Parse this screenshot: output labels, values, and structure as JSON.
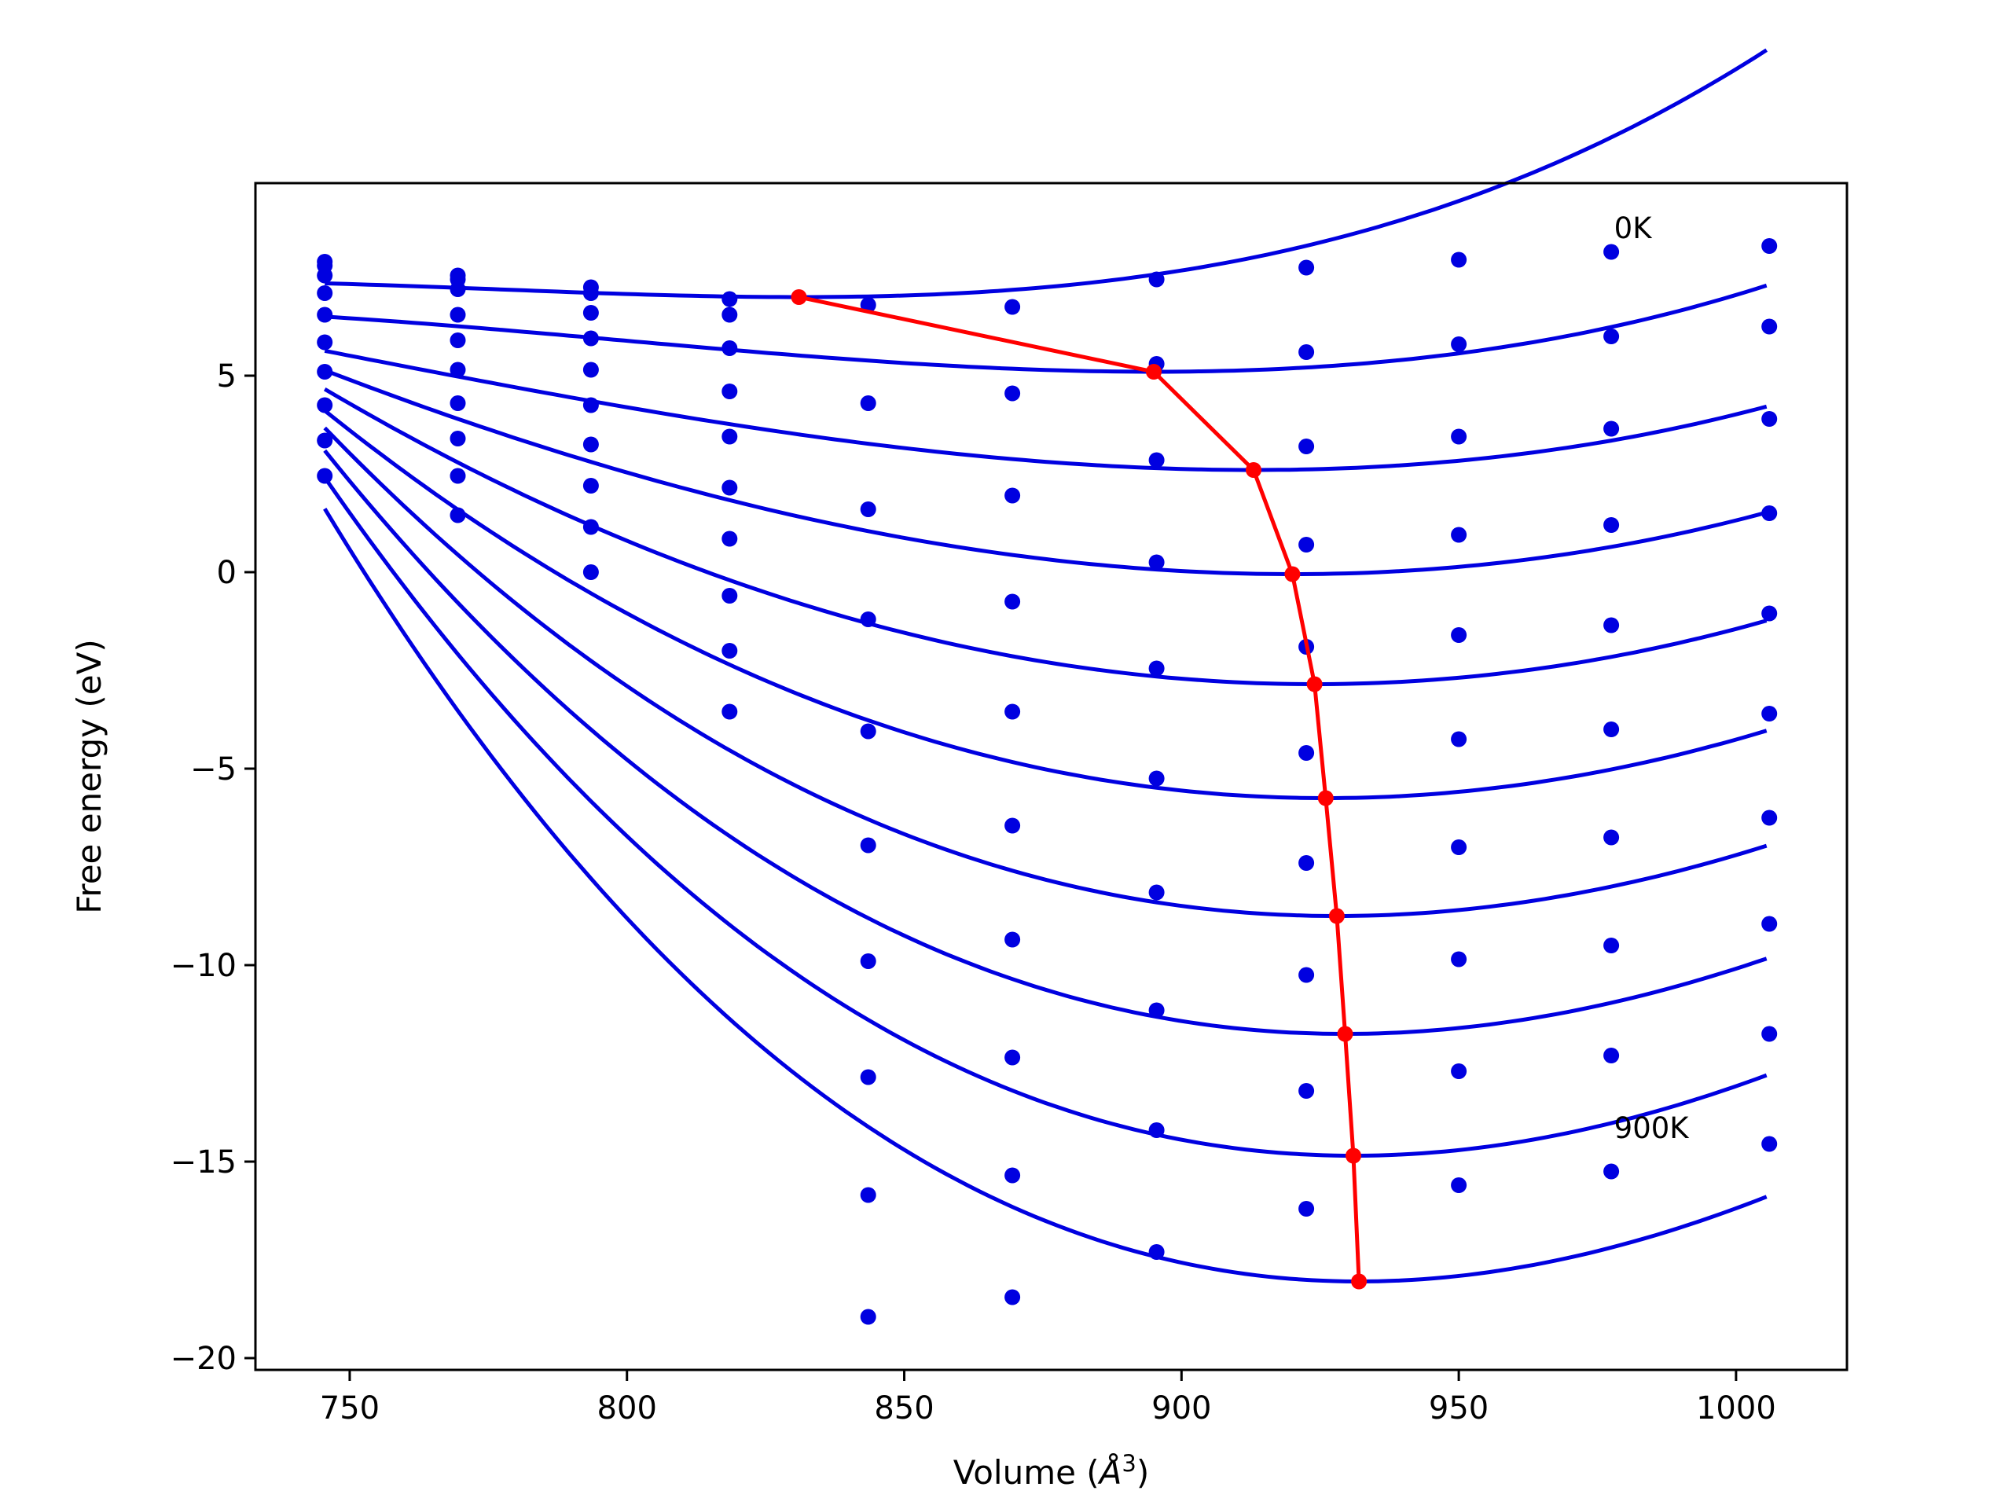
{
  "chart_data": {
    "type": "line",
    "xlabel_prefix": "Volume (",
    "xlabel_unit": "Å",
    "xlabel_exp": "3",
    "xlabel_suffix": ")",
    "ylabel": "Free energy (eV)",
    "xlim": [
      733,
      1020
    ],
    "ylim": [
      -20.3,
      9.9
    ],
    "xticks": [
      750,
      800,
      850,
      900,
      950,
      1000
    ],
    "xtick_labels": [
      "750",
      "800",
      "850",
      "900",
      "950",
      "1000"
    ],
    "yticks": [
      5,
      0,
      -5,
      -10,
      -15,
      -20
    ],
    "ytick_labels": [
      "5",
      "0",
      "−5",
      "−10",
      "−15",
      "−20"
    ],
    "grid": false,
    "legend": "none",
    "colors": {
      "fit": "#0000e0",
      "points": "#0000e0",
      "minimum_path": "#ff0000"
    },
    "annotations": [
      {
        "text": "0K",
        "x": 978,
        "y": 8.5
      },
      {
        "text": "900K",
        "x": 978,
        "y": -14.4
      }
    ],
    "volumes": [
      745.5,
      769.5,
      793.5,
      818.5,
      843.5,
      869.5,
      895.5,
      922.5,
      950.0,
      977.5,
      1006.0
    ],
    "fit_range": [
      745.5,
      1006.0
    ],
    "series": [
      {
        "values": [
          7.9,
          7.55,
          7.25,
          6.95,
          6.8,
          6.75,
          7.45,
          7.75,
          7.95,
          8.15,
          8.3
        ],
        "fit": {
          "v0": 831,
          "f0": 7.0,
          "a": 0.0001,
          "b": 6.1e-07
        }
      },
      {
        "values": [
          7.8,
          7.45,
          7.1,
          6.55,
          4.3,
          4.55,
          5.3,
          5.6,
          5.8,
          6.0,
          6.25
        ],
        "fit": {
          "v0": 895,
          "f0": 5.1,
          "a": 0.00013,
          "b": 4.5e-07
        }
      },
      {
        "values": [
          7.55,
          7.2,
          6.6,
          5.7,
          1.6,
          1.95,
          2.85,
          3.2,
          3.45,
          3.65,
          3.9
        ],
        "fit": {
          "v0": 913,
          "f0": 2.6,
          "a": 0.00016,
          "b": 3.1e-07
        }
      },
      {
        "values": [
          7.1,
          6.55,
          5.95,
          4.6,
          -1.2,
          -0.75,
          0.25,
          0.7,
          0.95,
          1.2,
          1.5
        ],
        "fit": {
          "v0": 920,
          "f0": -0.05,
          "a": 0.0002,
          "b": 1.7e-07
        }
      },
      {
        "values": [
          6.55,
          5.9,
          5.15,
          3.45,
          -4.05,
          -3.55,
          -2.45,
          -1.9,
          -1.6,
          -1.35,
          -1.05
        ],
        "fit": {
          "v0": 924,
          "f0": -2.85,
          "a": 0.000241,
          "b": 3e-08
        }
      },
      {
        "values": [
          5.85,
          5.15,
          4.25,
          2.15,
          -6.95,
          -6.45,
          -5.25,
          -4.6,
          -4.25,
          -4.0,
          -3.6
        ],
        "fit": {
          "v0": 926,
          "f0": -5.75,
          "a": 0.000281,
          "b": -1.2e-07
        }
      },
      {
        "values": [
          5.1,
          4.3,
          3.25,
          0.85,
          -9.9,
          -9.35,
          -8.15,
          -7.4,
          -7.0,
          -6.75,
          -6.25
        ],
        "fit": {
          "v0": 928,
          "f0": -8.75,
          "a": 0.00032,
          "b": -2.9e-07
        }
      },
      {
        "values": [
          4.25,
          3.4,
          2.2,
          -0.6,
          -12.85,
          -12.35,
          -11.15,
          -10.25,
          -9.85,
          -9.5,
          -8.95
        ],
        "fit": {
          "v0": 929.5,
          "f0": -11.75,
          "a": 0.000363,
          "b": -4.1e-07
        }
      },
      {
        "values": [
          3.35,
          2.45,
          1.15,
          -2.0,
          -15.85,
          -15.35,
          -14.2,
          -13.2,
          -12.7,
          -12.3,
          -11.75
        ],
        "fit": {
          "v0": 931,
          "f0": -14.85,
          "a": 0.000407,
          "b": -5.1e-07
        }
      },
      {
        "values": [
          2.45,
          1.45,
          0.0,
          -3.55,
          -18.95,
          -18.45,
          -17.3,
          -16.2,
          -15.6,
          -15.25,
          -14.55
        ],
        "fit": {
          "v0": 932,
          "f0": -18.05,
          "a": 0.000446,
          "b": -6.4e-07
        }
      }
    ],
    "minimum_path": {
      "x": [
        831,
        895,
        913,
        920,
        924,
        926,
        928,
        929.5,
        931,
        932
      ],
      "y": [
        7.0,
        5.1,
        2.6,
        -0.05,
        -2.85,
        -5.75,
        -8.75,
        -11.75,
        -14.85,
        -18.05
      ]
    }
  }
}
